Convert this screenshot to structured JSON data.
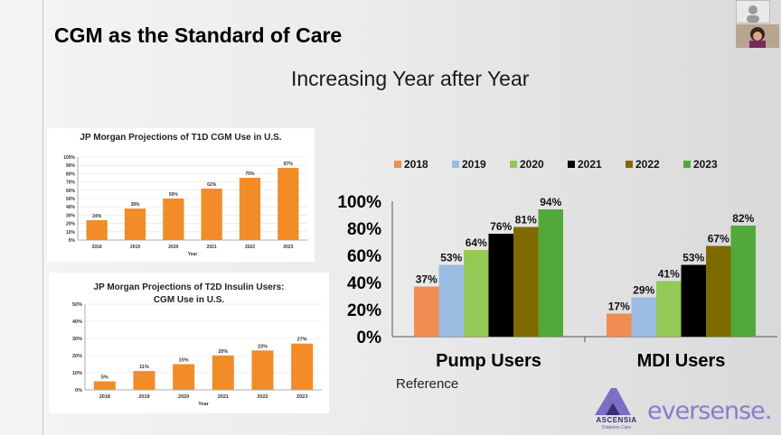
{
  "slide": {
    "title": "CGM as the Standard of Care",
    "subtitle": "Increasing Year after Year",
    "reference": "Reference"
  },
  "logos": {
    "ascensia": "ASCENSIA",
    "ascensia_sub": "Diabetes Care",
    "eversense": "eversense."
  },
  "colors": {
    "orange_bar": "#f28c28",
    "2018": "#f08d52",
    "2019": "#9bbbe0",
    "2020": "#94c957",
    "2021": "#000000",
    "2022": "#7f6a00",
    "2023": "#53a83a"
  },
  "chart_data": [
    {
      "type": "bar",
      "title": "JP Morgan Projections of T1D CGM Use in U.S.",
      "xlabel": "Year",
      "ylabel": "",
      "categories": [
        "2018",
        "2019",
        "2020",
        "2021",
        "2022",
        "2023"
      ],
      "values": [
        24,
        38,
        50,
        62,
        75,
        87
      ],
      "data_labels": [
        "24%",
        "38%",
        "50%",
        "62%",
        "75%",
        "87%"
      ],
      "ylim": [
        0,
        100
      ],
      "yticks": [
        "0%",
        "10%",
        "20%",
        "30%",
        "40%",
        "50%",
        "60%",
        "70%",
        "80%",
        "90%",
        "100%"
      ]
    },
    {
      "type": "bar",
      "title": "JP Morgan Projections of T2D Insulin Users: CGM Use in U.S.",
      "xlabel": "Year",
      "ylabel": "",
      "categories": [
        "2018",
        "2019",
        "2020",
        "2021",
        "2022",
        "2023"
      ],
      "values": [
        5,
        11,
        15,
        20,
        23,
        27
      ],
      "data_labels": [
        "5%",
        "11%",
        "15%",
        "20%",
        "23%",
        "27%"
      ],
      "ylim": [
        0,
        50
      ],
      "yticks": [
        "0%",
        "10%",
        "20%",
        "30%",
        "40%",
        "50%"
      ]
    },
    {
      "type": "bar",
      "title": "",
      "xlabel": "",
      "ylabel": "",
      "categories": [
        "Pump Users",
        "MDI Users"
      ],
      "series": [
        {
          "name": "2018",
          "values": [
            37,
            17
          ],
          "labels": [
            "37%",
            "17%"
          ]
        },
        {
          "name": "2019",
          "values": [
            53,
            29
          ],
          "labels": [
            "53%",
            "29%"
          ]
        },
        {
          "name": "2020",
          "values": [
            64,
            41
          ],
          "labels": [
            "64%",
            "41%"
          ]
        },
        {
          "name": "2021",
          "values": [
            76,
            53
          ],
          "labels": [
            "76%",
            "53%"
          ]
        },
        {
          "name": "2022",
          "values": [
            81,
            67
          ],
          "labels": [
            "81%",
            "67%"
          ]
        },
        {
          "name": "2023",
          "values": [
            94,
            82
          ],
          "labels": [
            "94%",
            "82%"
          ]
        }
      ],
      "ylim": [
        0,
        100
      ],
      "yticks": [
        "0%",
        "20%",
        "40%",
        "60%",
        "80%",
        "100%"
      ],
      "legend": "top"
    }
  ]
}
